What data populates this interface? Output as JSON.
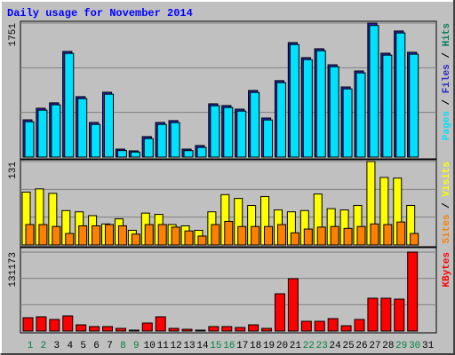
{
  "chart_data": [
    {
      "type": "bar",
      "title": "Daily usage for November 2014",
      "legend_separator": " / ",
      "ylim": [
        0,
        1751
      ],
      "yticks": [
        1751
      ],
      "series": [
        {
          "name": "Pages",
          "color": "#00e0ff",
          "values": [
            462,
            613,
            683,
            1355,
            764,
            427,
            822,
            85,
            66,
            242,
            427,
            451,
            85,
            126,
            671,
            648,
            601,
            845,
            485,
            973,
            1471,
            1274,
            1390,
            1181,
            891,
            1100,
            1720,
            1332,
            1622,
            1344,
            null
          ]
        },
        {
          "name": "Files",
          "color": "#2828c8",
          "values": [
            487,
            638,
            708,
            1380,
            789,
            452,
            847,
            104,
            81,
            267,
            452,
            476,
            104,
            151,
            696,
            673,
            626,
            870,
            510,
            998,
            1496,
            1299,
            1415,
            1206,
            916,
            1125,
            1751,
            1357,
            1647,
            1369,
            null
          ]
        },
        {
          "name": "Hits",
          "color": "#00805c",
          "values": [
            487,
            638,
            708,
            1380,
            789,
            452,
            847,
            104,
            81,
            267,
            452,
            476,
            104,
            151,
            696,
            673,
            626,
            870,
            510,
            998,
            1496,
            1299,
            1415,
            1206,
            916,
            1125,
            1751,
            1357,
            1647,
            1369,
            null
          ]
        }
      ]
    },
    {
      "type": "bar",
      "legend_separator": " / ",
      "ylim": [
        0,
        131
      ],
      "yticks": [
        131
      ],
      "series": [
        {
          "name": "Sites",
          "color": "#ff8000",
          "values": [
            32,
            32,
            29,
            18,
            30,
            30,
            32,
            30,
            17,
            32,
            32,
            28,
            22,
            14,
            32,
            37,
            29,
            29,
            29,
            32,
            19,
            25,
            28,
            29,
            26,
            29,
            33,
            32,
            36,
            18,
            null
          ]
        },
        {
          "name": "Visits",
          "color": "#ffff00",
          "values": [
            83,
            88,
            81,
            54,
            52,
            46,
            33,
            41,
            23,
            50,
            48,
            32,
            30,
            23,
            52,
            79,
            73,
            62,
            76,
            55,
            52,
            54,
            80,
            57,
            55,
            62,
            131,
            106,
            105,
            62,
            null
          ]
        }
      ]
    },
    {
      "type": "bar",
      "ylim": [
        0,
        131173
      ],
      "yticks": [
        131173
      ],
      "categories": [
        "1",
        "2",
        "3",
        "4",
        "5",
        "6",
        "7",
        "8",
        "9",
        "10",
        "11",
        "12",
        "13",
        "14",
        "15",
        "16",
        "17",
        "18",
        "19",
        "20",
        "21",
        "22",
        "23",
        "24",
        "25",
        "26",
        "27",
        "28",
        "29",
        "30",
        "31"
      ],
      "category_colors": [
        "#008040",
        "#008040",
        "#000000",
        "#000000",
        "#000000",
        "#000000",
        "#000000",
        "#008040",
        "#008040",
        "#000000",
        "#000000",
        "#000000",
        "#000000",
        "#000000",
        "#008040",
        "#008040",
        "#000000",
        "#000000",
        "#000000",
        "#000000",
        "#000000",
        "#008040",
        "#008040",
        "#000000",
        "#000000",
        "#000000",
        "#000000",
        "#000000",
        "#008040",
        "#008040",
        "#000000"
      ],
      "series": [
        {
          "name": "KBytes",
          "color": "#ff0000",
          "values": [
            22100,
            23600,
            19200,
            25100,
            10300,
            7400,
            7400,
            4400,
            1500,
            13300,
            23600,
            4400,
            2900,
            1500,
            7400,
            7400,
            5900,
            10300,
            4400,
            61900,
            86900,
            16200,
            16200,
            20600,
            8800,
            19200,
            54500,
            54500,
            53000,
            131173,
            null
          ]
        }
      ]
    }
  ]
}
